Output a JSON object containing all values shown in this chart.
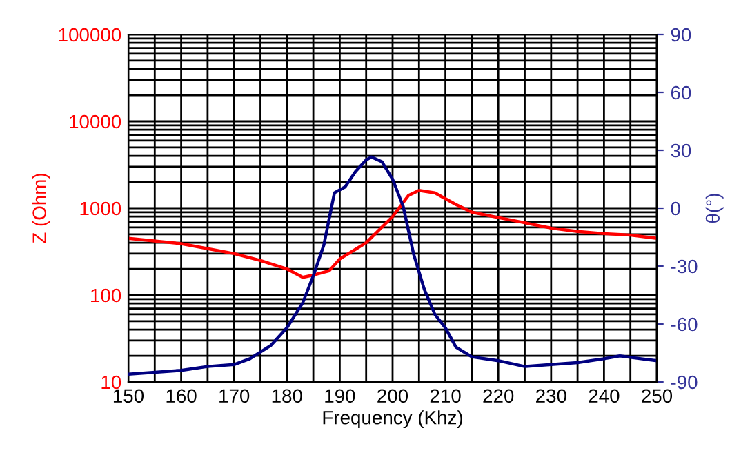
{
  "chart_data": {
    "type": "line",
    "xlabel": "Frequency (Khz)",
    "ylabel": "Z (Ohm)",
    "y2label": "θ(°)",
    "log": "y",
    "grid": true,
    "legend": false,
    "xlim": [
      150,
      250
    ],
    "xticks": [
      150,
      {
        "value": 155,
        "label": null
      },
      160,
      {
        "value": 165,
        "label": null
      },
      170,
      {
        "value": 175,
        "label": null
      },
      180,
      {
        "value": 185,
        "label": null
      },
      190,
      {
        "value": 195,
        "label": null
      },
      200,
      {
        "value": 205,
        "label": null
      },
      210,
      {
        "value": 215,
        "label": null
      },
      220,
      {
        "value": 225,
        "label": null
      },
      230,
      {
        "value": 235,
        "label": null
      },
      240,
      {
        "value": 245,
        "label": null
      },
      250
    ],
    "ylim": [
      10,
      100000
    ],
    "yticks": [
      10,
      100,
      1000,
      10000,
      100000
    ],
    "y2lim": [
      -90,
      90
    ],
    "y2ticks": [
      -90,
      -60,
      -30,
      0,
      30,
      60,
      90
    ],
    "series": [
      {
        "color": "#ff0000",
        "x": [
          150,
          160,
          170,
          175,
          180,
          183,
          185,
          188,
          190,
          195,
          200,
          203,
          205,
          208,
          212,
          215,
          220,
          225,
          230,
          235,
          240,
          245,
          250
        ],
        "values": [
          450,
          390,
          300,
          250,
          200,
          160,
          170,
          190,
          260,
          400,
          800,
          1400,
          1600,
          1500,
          1100,
          900,
          780,
          680,
          590,
          540,
          510,
          490,
          450
        ]
      },
      {
        "color": "#000080",
        "axis": "y2",
        "x": [
          150,
          160,
          165,
          170,
          173,
          177,
          180,
          183,
          185,
          187,
          189,
          191,
          193,
          195,
          196,
          198,
          200,
          202,
          204,
          206,
          208,
          210,
          212,
          215,
          220,
          225,
          230,
          235,
          240,
          243,
          247,
          250
        ],
        "values": [
          -86,
          -84,
          -82,
          -81,
          -78,
          -71,
          -62,
          -49,
          -35,
          -19,
          8,
          11,
          19,
          25,
          26.5,
          24,
          15,
          1,
          -24,
          -42,
          -55,
          -62,
          -72,
          -77,
          -79,
          -82,
          -81,
          -80,
          -78,
          -76.5,
          -78,
          -79
        ]
      }
    ]
  }
}
